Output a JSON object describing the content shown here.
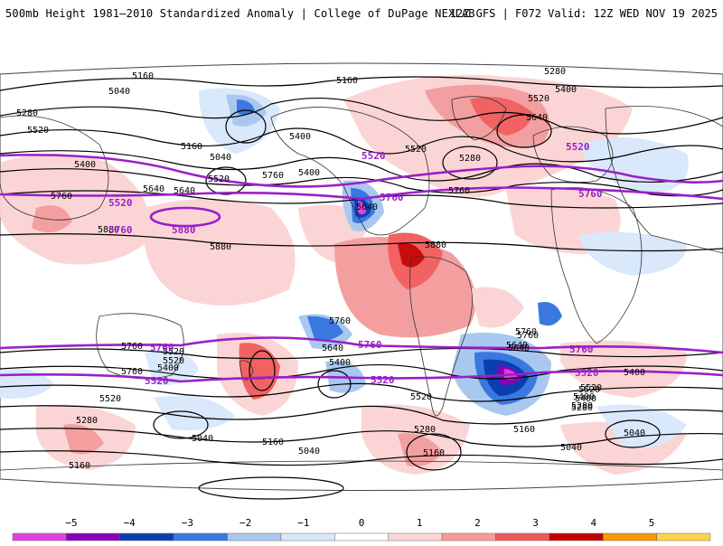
{
  "header": {
    "left": "500mb Height 1981–2010 Standardized Anomaly | College of DuPage NEXLAB",
    "right": "12Z GFS | F072 Valid: 12Z WED NOV 19 2025"
  },
  "map": {
    "projection": "Robinson-style global",
    "contours_black": [
      "5160",
      "5040",
      "5280",
      "5520",
      "5400",
      "5640",
      "5760",
      "5880"
    ],
    "contours_purple": [
      "5520",
      "5760",
      "5880"
    ],
    "purple_color": "#9b1fc9",
    "contour_labels": [
      "5160",
      "5040",
      "5280",
      "5520",
      "5400",
      "5160",
      "5040",
      "5520",
      "5760",
      "5640",
      "5760",
      "5880",
      "5880",
      "5160",
      "5280",
      "5400",
      "5520",
      "5640",
      "5880",
      "5760",
      "5640",
      "5520",
      "5400",
      "5280",
      "5400",
      "5640",
      "5520",
      "5400",
      "5760",
      "5520",
      "5760",
      "5400",
      "5640",
      "5760",
      "5520",
      "5280",
      "5040",
      "5160",
      "5280",
      "5520",
      "5400",
      "5160",
      "5040",
      "5520",
      "5640",
      "5760",
      "5520",
      "5400",
      "5280",
      "5160",
      "5040",
      "5760",
      "5640",
      "5400",
      "5280",
      "5160",
      "5040"
    ]
  },
  "legend": {
    "ticks": [
      "−5",
      "−4",
      "−3",
      "−2",
      "−1",
      "0",
      "1",
      "2",
      "3",
      "4",
      "5"
    ],
    "colors": [
      "#e040e0",
      "#8a00b8",
      "#0a3fb0",
      "#3a78e0",
      "#a9c8f0",
      "#d9e8fb",
      "#ffffff",
      "#ffd6d6",
      "#f79a9a",
      "#f15a5a",
      "#c40000",
      "#f59a00",
      "#ffd24a"
    ]
  }
}
